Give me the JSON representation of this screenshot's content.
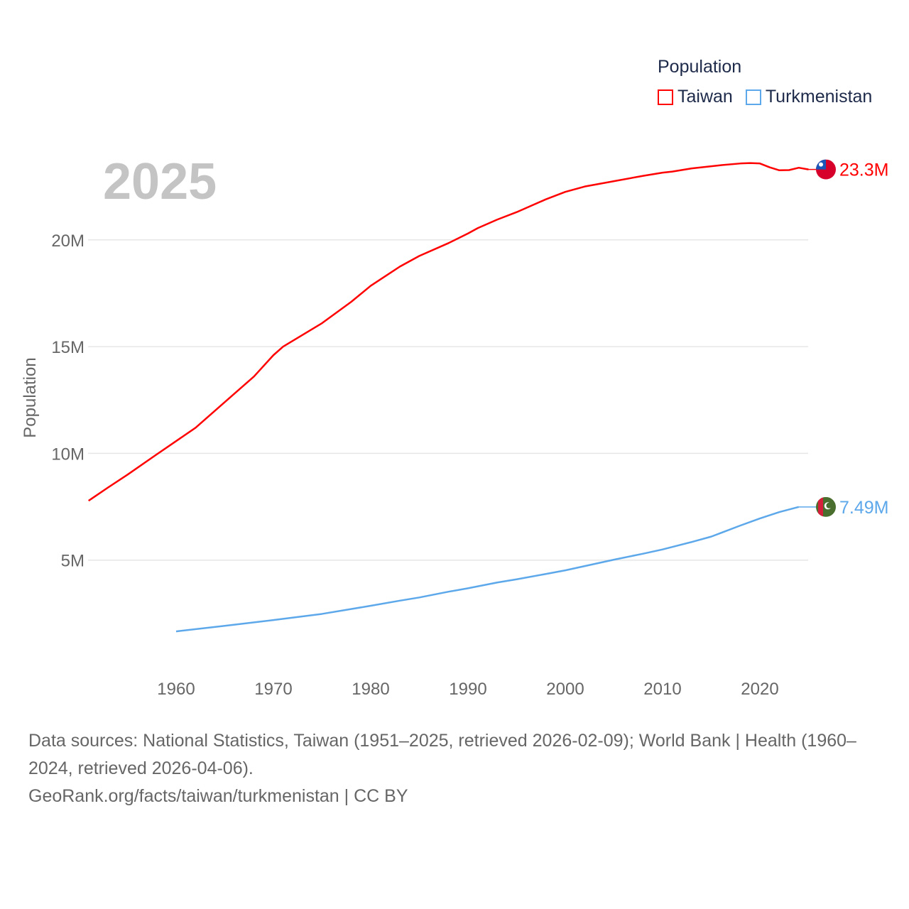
{
  "chart_data": {
    "type": "line",
    "year_label": "2025",
    "ylabel": "Population",
    "legend_title": "Population",
    "legend_placement": "top-right",
    "xlim": [
      1951,
      2025
    ],
    "ylim": [
      0,
      25000000
    ],
    "x_ticks": [
      "1960",
      "1970",
      "1980",
      "1990",
      "2000",
      "2010",
      "2020"
    ],
    "y_ticks": [
      {
        "v": 5000000,
        "label": "5M"
      },
      {
        "v": 10000000,
        "label": "10M"
      },
      {
        "v": 15000000,
        "label": "15M"
      },
      {
        "v": 20000000,
        "label": "20M"
      }
    ],
    "grid": true,
    "series": [
      {
        "name": "Taiwan",
        "color": "#ff0000",
        "end_label": "23.3M",
        "flag": "taiwan",
        "x": [
          1951,
          1953,
          1955,
          1958,
          1962,
          1966,
          1968,
          1970,
          1971,
          1973,
          1975,
          1978,
          1980,
          1983,
          1985,
          1988,
          1990,
          1991,
          1993,
          1995,
          1998,
          2000,
          2002,
          2005,
          2008,
          2010,
          2011,
          2013,
          2016,
          2018,
          2019,
          2020,
          2021,
          2022,
          2023,
          2024,
          2025
        ],
        "y": [
          7.78,
          8.4,
          9.0,
          9.95,
          11.2,
          12.8,
          13.6,
          14.6,
          15.0,
          15.55,
          16.1,
          17.1,
          17.85,
          18.75,
          19.25,
          19.85,
          20.3,
          20.55,
          20.95,
          21.3,
          21.9,
          22.25,
          22.5,
          22.75,
          23.0,
          23.15,
          23.2,
          23.35,
          23.5,
          23.58,
          23.6,
          23.58,
          23.4,
          23.26,
          23.27,
          23.38,
          23.3
        ]
      },
      {
        "name": "Turkmenistan",
        "color": "#5da8ea",
        "end_label": "7.49M",
        "flag": "turkmenistan",
        "x": [
          1960,
          1965,
          1970,
          1975,
          1980,
          1983,
          1985,
          1988,
          1990,
          1993,
          1995,
          1998,
          2000,
          2003,
          2005,
          2008,
          2010,
          2013,
          2015,
          2018,
          2020,
          2022,
          2024
        ],
        "y": [
          1.66,
          1.92,
          2.19,
          2.48,
          2.86,
          3.1,
          3.25,
          3.52,
          3.68,
          3.95,
          4.1,
          4.35,
          4.52,
          4.82,
          5.02,
          5.3,
          5.5,
          5.85,
          6.1,
          6.62,
          6.95,
          7.25,
          7.49
        ]
      }
    ]
  },
  "sources": {
    "line1": "Data sources: National Statistics, Taiwan (1951–2025, retrieved 2026-02-09); World Bank | Health (1960–2024, retrieved 2026-04-06).",
    "line2": "GeoRank.org/facts/taiwan/turkmenistan | CC BY"
  }
}
